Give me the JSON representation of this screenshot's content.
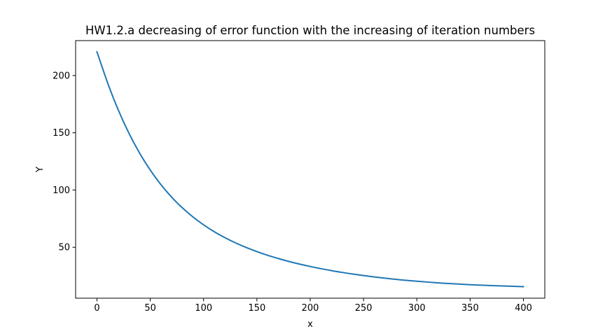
{
  "chart_data": {
    "type": "line",
    "title": "HW1.2.a decreasing of error function with the increasing of iteration numbers",
    "xlabel": "x",
    "ylabel": "Y",
    "xlim": [
      -20,
      420
    ],
    "ylim": [
      5.5,
      230.5
    ],
    "xticks": [
      0,
      50,
      100,
      150,
      200,
      250,
      300,
      350,
      400
    ],
    "yticks": [
      50,
      100,
      150,
      200
    ],
    "grid": false,
    "series": [
      {
        "color": "#1f77b4",
        "x": [
          0,
          10,
          20,
          30,
          40,
          50,
          60,
          70,
          80,
          90,
          100,
          110,
          120,
          130,
          140,
          150,
          160,
          170,
          180,
          190,
          200,
          210,
          220,
          230,
          240,
          250,
          260,
          270,
          280,
          290,
          300,
          310,
          320,
          330,
          340,
          350,
          360,
          370,
          380,
          390,
          400
        ],
        "y": [
          220.7,
          193.6,
          169.9,
          149.6,
          132.2,
          117.4,
          104.7,
          93.8,
          84.5,
          76.5,
          69.6,
          63.6,
          58.4,
          53.8,
          49.8,
          46.2,
          43.0,
          40.2,
          37.6,
          35.3,
          33.2,
          31.3,
          29.6,
          28.0,
          26.6,
          25.3,
          24.1,
          23.0,
          22.0,
          21.1,
          20.3,
          19.6,
          18.9,
          18.3,
          17.8,
          17.3,
          16.9,
          16.5,
          16.2,
          15.9,
          15.6
        ]
      }
    ]
  }
}
